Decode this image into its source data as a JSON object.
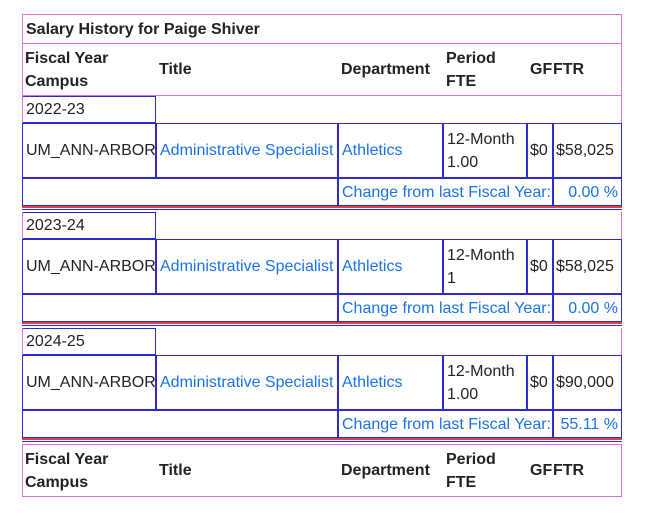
{
  "header": {
    "title": "Salary History for Paige Shiver",
    "columns": [
      [
        "Fiscal Year",
        "Campus"
      ],
      [
        "Title"
      ],
      [
        "Department"
      ],
      [
        "Period",
        "FTE"
      ],
      [
        "GF"
      ],
      [
        "FTR"
      ]
    ]
  },
  "years": [
    {
      "fiscal_year": "2022-23",
      "campus": "UM_ANN-ARBOR",
      "title": "Administrative Specialist",
      "department": "Athletics",
      "period": "12-Month",
      "fte": "1.00",
      "gf": "$0",
      "ftr": "$58,025",
      "change_label": "Change from last Fiscal Year:",
      "change_value": "0.00 %"
    },
    {
      "fiscal_year": "2023-24",
      "campus": "UM_ANN-ARBOR",
      "title": "Administrative Specialist",
      "department": "Athletics",
      "period": "12-Month",
      "fte": "1",
      "gf": "$0",
      "ftr": "$58,025",
      "change_label": "Change from last Fiscal Year:",
      "change_value": "0.00 %"
    },
    {
      "fiscal_year": "2024-25",
      "campus": "UM_ANN-ARBOR",
      "title": "Administrative Specialist",
      "department": "Athletics",
      "period": "12-Month",
      "fte": "1.00",
      "gf": "$0",
      "ftr": "$90,000",
      "change_label": "Change from last Fiscal Year:",
      "change_value": "55.11 %"
    }
  ],
  "footer": {
    "columns": [
      [
        "Fiscal Year",
        "Campus"
      ],
      [
        "Title"
      ],
      [
        "Department"
      ],
      [
        "Period",
        "FTE"
      ],
      [
        "GF"
      ],
      [
        "FTR"
      ]
    ]
  }
}
